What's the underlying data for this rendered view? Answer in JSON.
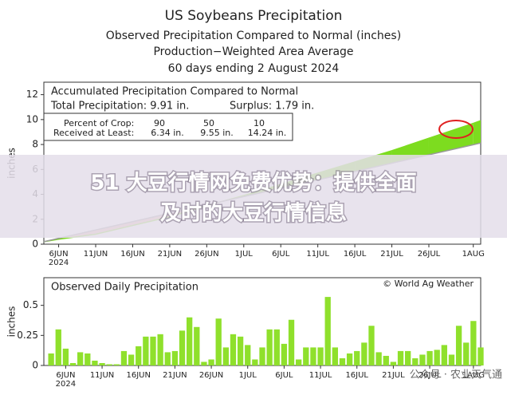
{
  "header": {
    "title": "US Soybeans Precipitation",
    "subtitle": "Observed Precipitation Compared to Normal (inches)",
    "subtitle2": "Production−Weighted Area Average",
    "period": "60 days ending 2 August 2024"
  },
  "chart_data": [
    {
      "type": "area",
      "title": "Accumulated Precipitation Compared to Normal",
      "total_label": "Total Precipitation: 9.91 in.",
      "surplus_label": "Surplus: 1.79 in.",
      "percentiles": {
        "header": "Percent of Crop:",
        "values": [
          90,
          50,
          10
        ],
        "row_label": "Received at Least:",
        "amounts": [
          "6.34 in.",
          "9.55 in.",
          "14.24 in."
        ]
      },
      "y_label": "inches",
      "x_year_label": "2024",
      "x": [
        "2024-06-04",
        "2024-06-06",
        "2024-06-11",
        "2024-06-16",
        "2024-06-21",
        "2024-06-26",
        "2024-07-01",
        "2024-07-06",
        "2024-07-11",
        "2024-07-16",
        "2024-07-21",
        "2024-07-26",
        "2024-08-01",
        "2024-08-02"
      ],
      "series": [
        {
          "color": "#7ddc1f",
          "values": [
            0.2,
            0.4,
            0.8,
            1.5,
            2.2,
            3.1,
            3.9,
            4.8,
            5.7,
            6.6,
            7.5,
            8.5,
            9.7,
            9.91
          ]
        },
        {
          "color": "#9a9a9a",
          "values": [
            0.2,
            0.47,
            1.14,
            1.81,
            2.48,
            3.15,
            3.82,
            4.49,
            5.16,
            5.83,
            6.5,
            7.17,
            7.98,
            8.12
          ]
        }
      ],
      "surplus_color": "#7ddc1f",
      "deficit_color": "#e9b7ae",
      "xlim": [
        "2024-06-04",
        "2024-08-02"
      ],
      "xticks": [
        {
          "value": "2024-06-06",
          "label": "6JUN"
        },
        {
          "value": "2024-06-11",
          "label": "11JUN"
        },
        {
          "value": "2024-06-16",
          "label": "16JUN"
        },
        {
          "value": "2024-06-21",
          "label": "21JUN"
        },
        {
          "value": "2024-06-26",
          "label": "26JUN"
        },
        {
          "value": "2024-07-01",
          "label": "1JUL"
        },
        {
          "value": "2024-07-06",
          "label": "6JUL"
        },
        {
          "value": "2024-07-11",
          "label": "11JUL"
        },
        {
          "value": "2024-07-16",
          "label": "16JUL"
        },
        {
          "value": "2024-07-21",
          "label": "21JUL"
        },
        {
          "value": "2024-07-26",
          "label": "26JUL"
        },
        {
          "value": "2024-08-01",
          "label": "1AUG"
        }
      ],
      "ylim": [
        0,
        13
      ],
      "yticks": [
        0,
        2,
        4,
        6,
        8,
        10,
        12
      ]
    },
    {
      "type": "bar",
      "title": "Observed Daily Precipitation",
      "credit": "© World Ag Weather",
      "y_label": "inches",
      "x_year_label": "2024",
      "color": "#8fe02c",
      "x": [
        "2024-06-04",
        "2024-06-05",
        "2024-06-06",
        "2024-06-07",
        "2024-06-08",
        "2024-06-09",
        "2024-06-10",
        "2024-06-11",
        "2024-06-12",
        "2024-06-13",
        "2024-06-14",
        "2024-06-15",
        "2024-06-16",
        "2024-06-17",
        "2024-06-18",
        "2024-06-19",
        "2024-06-20",
        "2024-06-21",
        "2024-06-22",
        "2024-06-23",
        "2024-06-24",
        "2024-06-25",
        "2024-06-26",
        "2024-06-27",
        "2024-06-28",
        "2024-06-29",
        "2024-06-30",
        "2024-07-01",
        "2024-07-02",
        "2024-07-03",
        "2024-07-04",
        "2024-07-05",
        "2024-07-06",
        "2024-07-07",
        "2024-07-08",
        "2024-07-09",
        "2024-07-10",
        "2024-07-11",
        "2024-07-12",
        "2024-07-13",
        "2024-07-14",
        "2024-07-15",
        "2024-07-16",
        "2024-07-17",
        "2024-07-18",
        "2024-07-19",
        "2024-07-20",
        "2024-07-21",
        "2024-07-22",
        "2024-07-23",
        "2024-07-24",
        "2024-07-25",
        "2024-07-26",
        "2024-07-27",
        "2024-07-28",
        "2024-07-29",
        "2024-07-30",
        "2024-07-31",
        "2024-08-01",
        "2024-08-02"
      ],
      "values": [
        0.1,
        0.3,
        0.14,
        0.02,
        0.11,
        0.1,
        0.04,
        0.02,
        0.01,
        0.01,
        0.12,
        0.09,
        0.16,
        0.24,
        0.24,
        0.26,
        0.11,
        0.12,
        0.29,
        0.4,
        0.32,
        0.03,
        0.05,
        0.39,
        0.15,
        0.26,
        0.24,
        0.17,
        0.05,
        0.15,
        0.3,
        0.3,
        0.18,
        0.38,
        0.05,
        0.15,
        0.15,
        0.15,
        0.57,
        0.15,
        0.06,
        0.1,
        0.12,
        0.19,
        0.33,
        0.11,
        0.08,
        0.03,
        0.12,
        0.12,
        0.06,
        0.09,
        0.12,
        0.13,
        0.17,
        0.09,
        0.33,
        0.19,
        0.37,
        0.15
      ],
      "xlim": [
        "2024-06-03",
        "2024-08-02"
      ],
      "xticks": [
        {
          "value": "2024-06-06",
          "label": "6JUN"
        },
        {
          "value": "2024-06-11",
          "label": "11JUN"
        },
        {
          "value": "2024-06-16",
          "label": "16JUN"
        },
        {
          "value": "2024-06-21",
          "label": "21JUN"
        },
        {
          "value": "2024-06-26",
          "label": "26JUN"
        },
        {
          "value": "2024-07-01",
          "label": "1JUL"
        },
        {
          "value": "2024-07-06",
          "label": "6JUL"
        },
        {
          "value": "2024-07-11",
          "label": "11JUL"
        },
        {
          "value": "2024-07-16",
          "label": "16JUL"
        },
        {
          "value": "2024-07-21",
          "label": "21JUL"
        },
        {
          "value": "2024-07-26",
          "label": "26JUL"
        },
        {
          "value": "2024-08-01",
          "label": "1AUG"
        }
      ],
      "ylim": [
        0,
        0.73
      ],
      "yticks": [
        0,
        0.25,
        0.5
      ]
    }
  ],
  "overlay": {
    "line1": "51 大豆行情网免费优势：提供全面",
    "line2": "及时的大豆行情信息"
  },
  "watermark": "公众号 · 农业天气通"
}
